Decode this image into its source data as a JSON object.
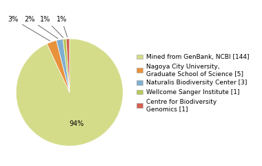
{
  "chart_data": {
    "type": "pie",
    "categories": [
      "Mined from GenBank, NCBI [144]",
      "Nagoya City University,\nGraduate School of Science [5]",
      "Naturalis Biodiversity Center [3]",
      "Wellcome Sanger Institute [1]",
      "Centre for Biodiversity\nGenomics [1]"
    ],
    "values": [
      94,
      3,
      2,
      1,
      1
    ],
    "value_labels": [
      "94%",
      "3%",
      "2%",
      "1%",
      "1%"
    ],
    "colors": [
      "#d4dc8a",
      "#e8923c",
      "#7eaed0",
      "#b8c95a",
      "#d45f4e"
    ],
    "data_labels": true,
    "legend": "center left"
  }
}
